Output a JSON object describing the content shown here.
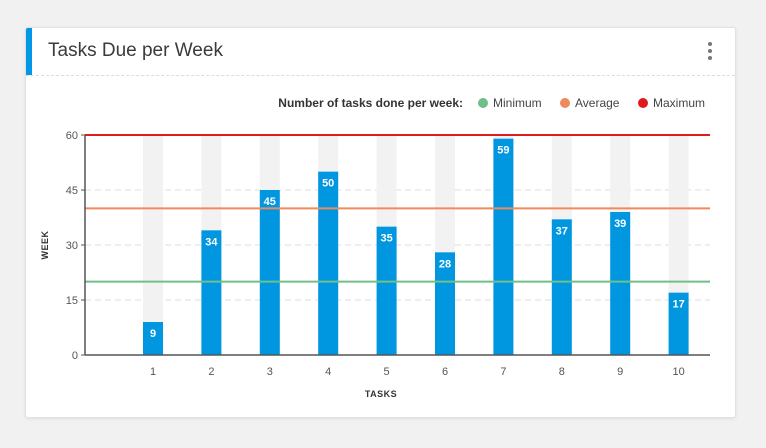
{
  "card": {
    "title": "Tasks Due per Week",
    "menu_icon": "vertical-dots-icon",
    "accent_color": "#0097e6"
  },
  "chart_data": {
    "type": "bar",
    "title": "Tasks Due per Week",
    "xlabel": "TASKS",
    "ylabel": "WEEK",
    "categories": [
      "1",
      "2",
      "3",
      "4",
      "5",
      "6",
      "7",
      "8",
      "9",
      "10"
    ],
    "values": [
      9,
      34,
      45,
      50,
      35,
      28,
      59,
      37,
      39,
      17
    ],
    "background_value": 60,
    "ylim": [
      0,
      60
    ],
    "yticks": [
      0,
      15,
      30,
      45,
      60
    ],
    "grid": true,
    "bar_color": "#0096e0",
    "track_color": "#f2f2f2",
    "legend": {
      "title": "Number of tasks done per week:",
      "position": "top-right",
      "items": [
        {
          "label": "Minimum",
          "value": 20,
          "color": "#6fbf8a"
        },
        {
          "label": "Average",
          "value": 40,
          "color": "#f08a5d"
        },
        {
          "label": "Maximum",
          "value": 60,
          "color": "#e01b1b"
        }
      ]
    }
  }
}
